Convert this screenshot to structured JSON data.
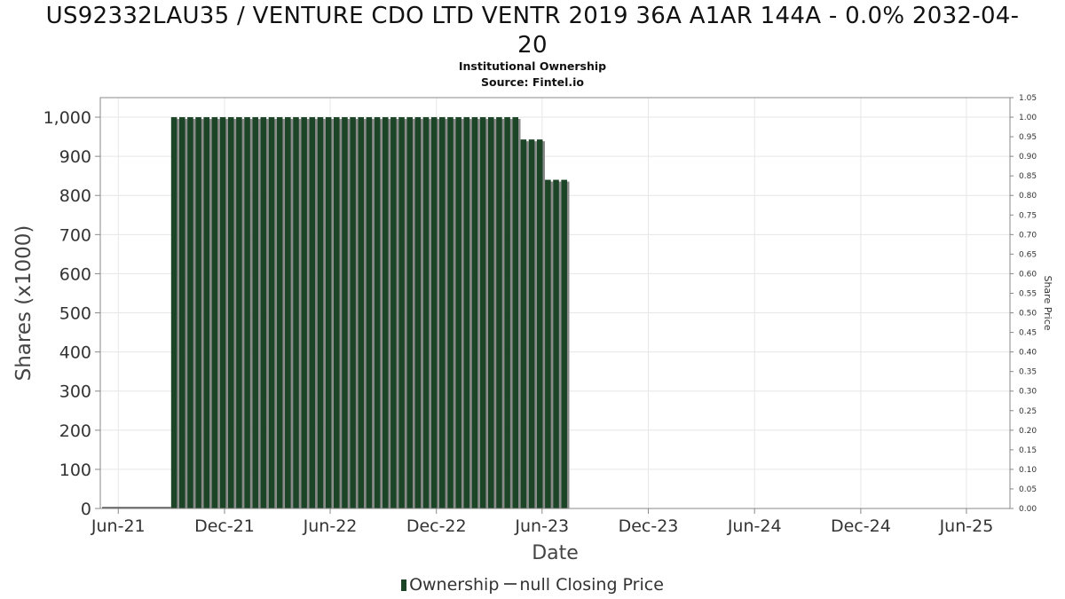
{
  "header": {
    "title_line1": "US92332LAU35 / VENTURE CDO LTD VENTR 2019 36A A1AR 144A - 0.0% 2032-04-",
    "title_line2": "20",
    "subtitle_line1": "Institutional Ownership",
    "subtitle_line2": "Source: Fintel.io"
  },
  "legend": {
    "ownership_label": "Ownership",
    "price_label": "null Closing Price"
  },
  "colors": {
    "bar": "#1c4426",
    "bar_shadow": "#8a8a8a",
    "grid": "#e6e6e6",
    "axis": "#888888"
  },
  "chart_data": {
    "type": "bar",
    "title": "US92332LAU35 / VENTURE CDO LTD VENTR 2019 36A A1AR 144A - 0.0% 2032-04-20",
    "subtitle": "Institutional Ownership",
    "xlabel": "Date",
    "ylabel": "Shares (x1000)",
    "y2label": "Share Price",
    "x_ticks": [
      "Jun-21",
      "Dec-21",
      "Jun-22",
      "Dec-22",
      "Jun-23",
      "Dec-23",
      "Jun-24",
      "Dec-24",
      "Jun-25"
    ],
    "y_ticks": [
      "0",
      "100",
      "200",
      "300",
      "400",
      "500",
      "600",
      "700",
      "800",
      "900",
      "1,000"
    ],
    "y2_ticks": [
      "0.00",
      "0.05",
      "0.10",
      "0.15",
      "0.20",
      "0.25",
      "0.30",
      "0.35",
      "0.40",
      "0.45",
      "0.50",
      "0.55",
      "0.60",
      "0.65",
      "0.70",
      "0.75",
      "0.80",
      "0.85",
      "0.90",
      "0.95",
      "1.00",
      "1.05"
    ],
    "ylim": [
      0,
      1050
    ],
    "y2lim": [
      0,
      1.05
    ],
    "x_start": "2021-05-01",
    "x_end": "2025-08-15",
    "series": [
      {
        "name": "Ownership",
        "x_start": "2021-08-31",
        "x_step_weeks": 2,
        "values": [
          1000,
          1000,
          1000,
          1000,
          1000,
          1000,
          1000,
          1000,
          1000,
          1000,
          1000,
          1000,
          1000,
          1000,
          1000,
          1000,
          1000,
          1000,
          1000,
          1000,
          1000,
          1000,
          1000,
          1000,
          1000,
          1000,
          1000,
          1000,
          1000,
          1000,
          1000,
          1000,
          1000,
          1000,
          1000,
          1000,
          1000,
          1000,
          1000,
          1000,
          1000,
          1000,
          1000,
          943,
          943,
          943,
          840,
          840,
          840
        ]
      }
    ],
    "grid": true,
    "legend_position": "bottom"
  }
}
